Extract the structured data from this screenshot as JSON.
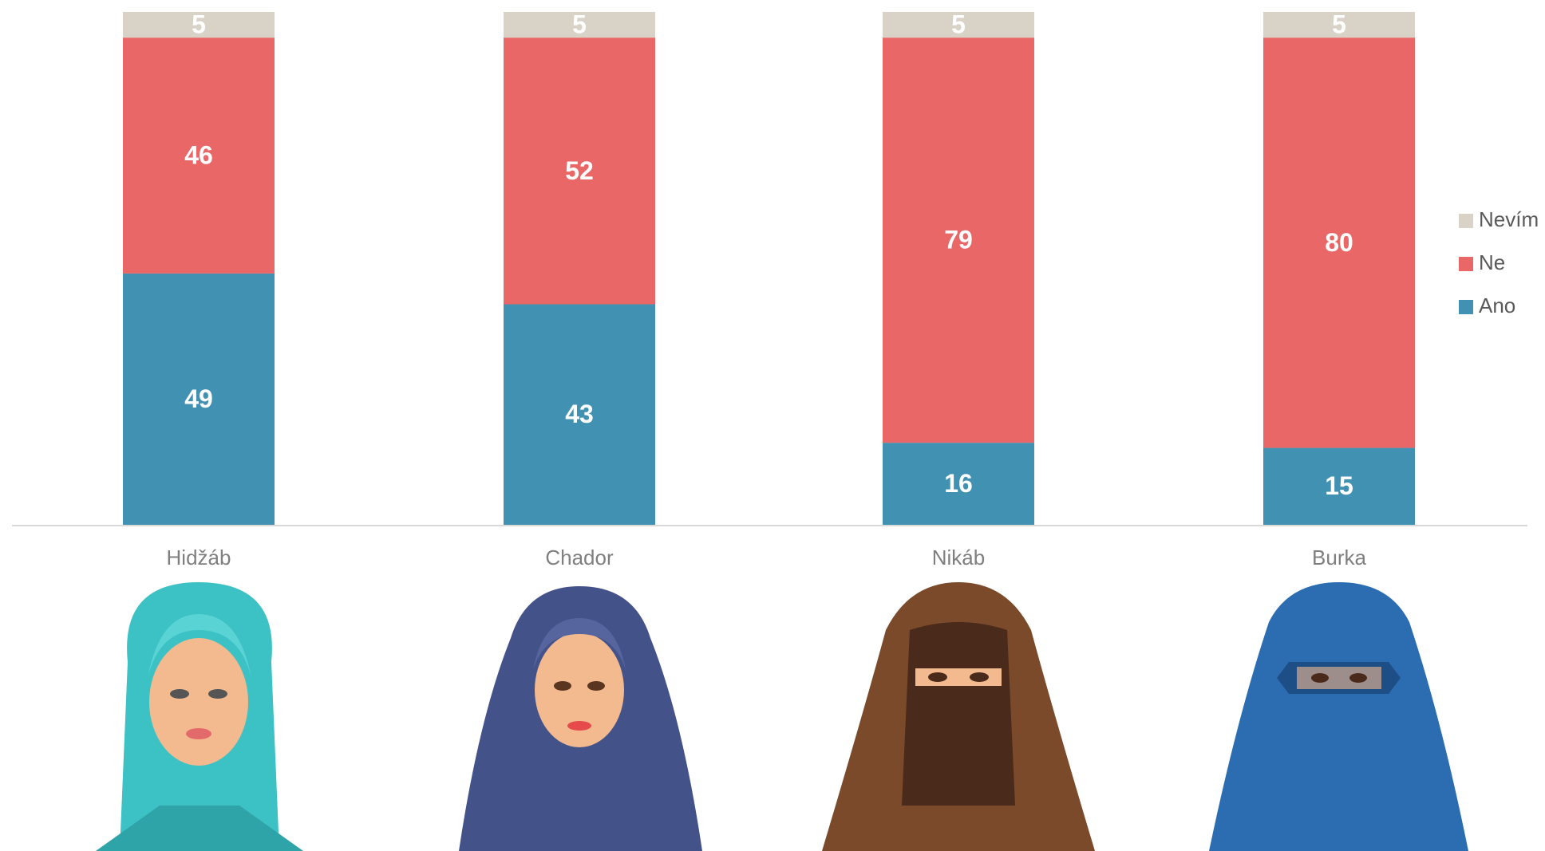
{
  "chart_data": {
    "type": "stacked_bar",
    "categories": [
      "Hidžáb",
      "Chador",
      "Nikáb",
      "Burka"
    ],
    "series": [
      {
        "name": "Ano",
        "color": "#4191b3",
        "values": [
          49,
          43,
          16,
          15
        ]
      },
      {
        "name": "Ne",
        "color": "#e96767",
        "values": [
          46,
          52,
          79,
          80
        ]
      },
      {
        "name": "Nevím",
        "color": "#d9d3c7",
        "values": [
          5,
          5,
          5,
          5
        ]
      }
    ],
    "legend": "right"
  }
}
